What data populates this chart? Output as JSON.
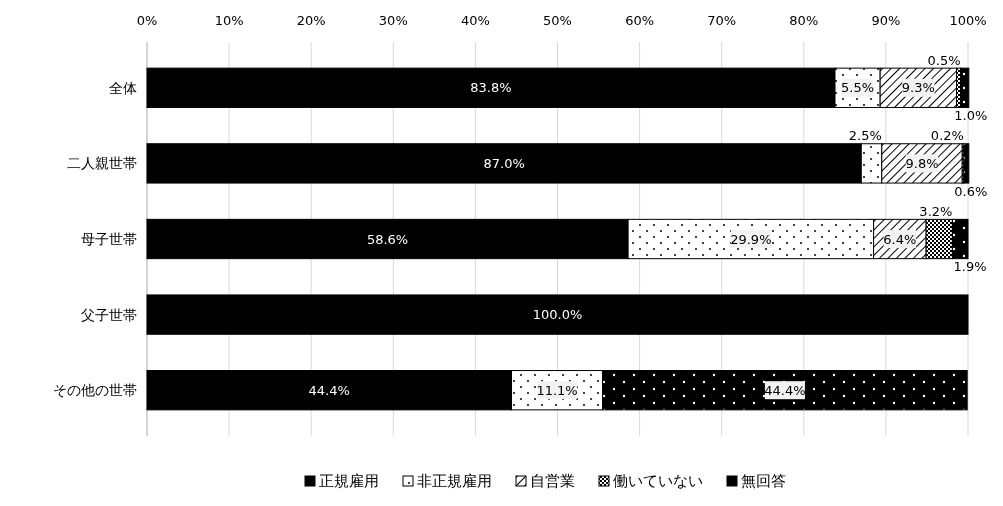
{
  "chart_data": {
    "type": "bar",
    "orientation": "horizontal",
    "stacked": true,
    "categories": [
      "全体",
      "二人親世帯",
      "母子世帯",
      "父子世帯",
      "その他の世帯"
    ],
    "series": [
      {
        "name": "正規雇用",
        "color": "#000000",
        "values": [
          83.8,
          87.0,
          58.6,
          100.0,
          44.4
        ],
        "value_labels": [
          "83.8%",
          "87.0%",
          "58.6%",
          "100.0%",
          "44.4%"
        ]
      },
      {
        "name": "非正規雇用",
        "color": "#ffffff",
        "values": [
          5.5,
          2.5,
          29.9,
          0,
          11.1
        ],
        "value_labels": [
          "5.5%",
          "2.5%",
          "29.9%",
          null,
          "11.1%"
        ]
      },
      {
        "name": "自営業",
        "color": "#ffffff",
        "values": [
          9.3,
          9.8,
          6.4,
          0,
          0
        ],
        "value_labels": [
          "9.3%",
          "9.8%",
          "6.4%",
          null,
          null
        ]
      },
      {
        "name": "働いていない",
        "color": "#000000",
        "values": [
          0.5,
          0.2,
          3.2,
          0,
          0
        ],
        "value_labels": [
          "0.5%",
          "0.2%",
          "3.2%",
          null,
          null
        ]
      },
      {
        "name": "無回答",
        "color": "#000000",
        "values": [
          1.0,
          0.6,
          1.9,
          0,
          44.4
        ],
        "value_labels": [
          "1.0%",
          "0.6%",
          "1.9%",
          null,
          "44.4%"
        ]
      }
    ],
    "xlim": [
      0,
      100
    ],
    "xticks": [
      {
        "value": 0,
        "label": "0%"
      },
      {
        "value": 10,
        "label": "10%"
      },
      {
        "value": 20,
        "label": "20%"
      },
      {
        "value": 30,
        "label": "30%"
      },
      {
        "value": 40,
        "label": "40%"
      },
      {
        "value": 50,
        "label": "50%"
      },
      {
        "value": 60,
        "label": "60%"
      },
      {
        "value": 70,
        "label": "70%"
      },
      {
        "value": 80,
        "label": "80%"
      },
      {
        "value": 90,
        "label": "90%"
      },
      {
        "value": 100,
        "label": "100%"
      }
    ],
    "grid": "x",
    "legend": "bottom"
  }
}
